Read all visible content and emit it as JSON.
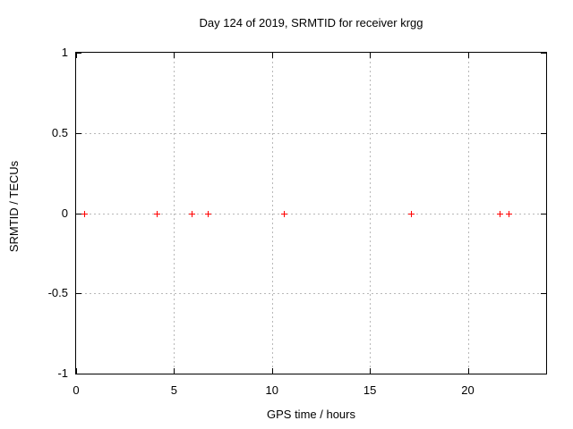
{
  "chart_data": {
    "type": "scatter",
    "title": "Day 124 of 2019, SRMTID for receiver krgg",
    "xlabel": "GPS time / hours",
    "ylabel": "SRMTID / TECUs",
    "xlim": [
      0,
      24
    ],
    "ylim": [
      -1,
      1
    ],
    "xticks": [
      0,
      5,
      10,
      15,
      20
    ],
    "yticks": [
      1,
      0.5,
      0,
      -0.5,
      -1
    ],
    "grid": true,
    "legend_position": "none",
    "series": [
      {
        "name": "SRMTID",
        "marker": "plus",
        "color": "#ff0000",
        "x": [
          0.4,
          4.1,
          5.9,
          6.7,
          10.6,
          17.1,
          21.6,
          22.1
        ],
        "y": [
          0,
          0,
          0,
          0,
          0,
          0,
          0,
          0
        ]
      }
    ]
  },
  "colors": {
    "background": "#ffffff",
    "border": "#000000",
    "grid": "#b8b8b8",
    "text": "#000000",
    "marker": "#ff0000"
  }
}
